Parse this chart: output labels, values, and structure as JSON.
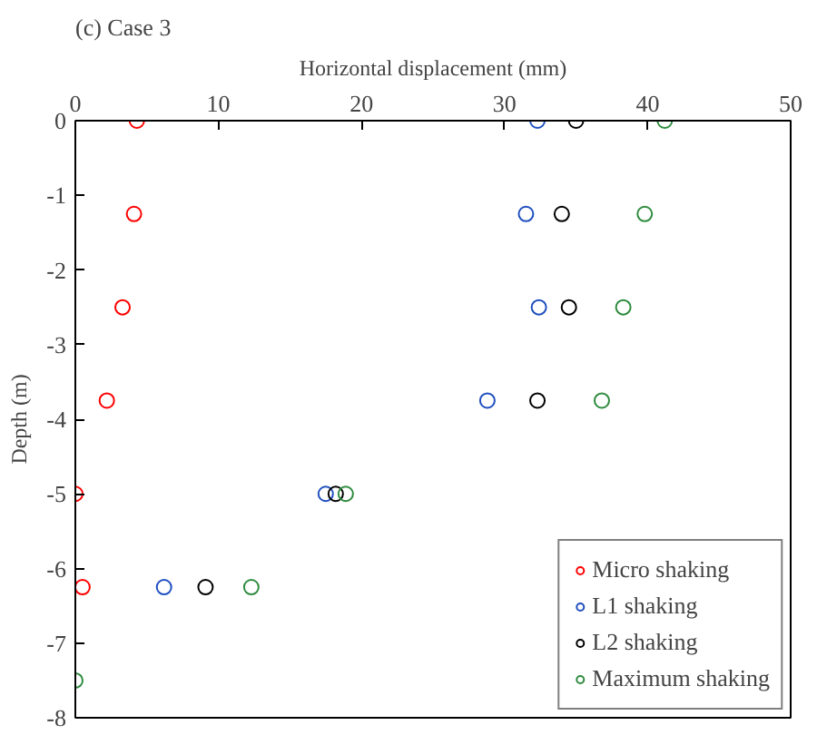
{
  "chart_data": {
    "type": "scatter",
    "title": "(c) Case 3",
    "xlabel": "Horizontal displacement (mm)",
    "ylabel": "Depth (m)",
    "xlim": [
      0,
      50
    ],
    "xticks": [
      0,
      10,
      20,
      30,
      40,
      50
    ],
    "ylim": [
      -8,
      0
    ],
    "yticks": [
      -8,
      -7,
      -6,
      -5,
      -4,
      -3,
      -2,
      -1,
      0
    ],
    "marker": "circle",
    "grid": false,
    "legend": "bottom right",
    "series": [
      {
        "name": "Micro shaking",
        "color": "#ff0000",
        "x": [
          4.3,
          4.1,
          3.3,
          2.2,
          0,
          0.5,
          null
        ],
        "values": [
          0,
          -1.25,
          -2.5,
          -3.75,
          -5,
          -6.25,
          null
        ]
      },
      {
        "name": "L1 shaking",
        "color": "#1f4fbf",
        "x": [
          32.3,
          31.5,
          32.4,
          28.8,
          17.5,
          6.2,
          null
        ],
        "values": [
          0,
          -1.25,
          -2.5,
          -3.75,
          -5,
          -6.25,
          null
        ]
      },
      {
        "name": "L2 shaking",
        "color": "#000000",
        "x": [
          35,
          34,
          34.5,
          32.3,
          18.2,
          9.1,
          null
        ],
        "values": [
          0,
          -1.25,
          -2.5,
          -3.75,
          -5,
          -6.25,
          null
        ]
      },
      {
        "name": "Maximum shaking",
        "color": "#2e8b3e",
        "x": [
          41.2,
          39.8,
          38.3,
          36.8,
          18.9,
          12.3,
          0
        ],
        "values": [
          0,
          -1.25,
          -2.5,
          -3.75,
          -5,
          -6.25,
          -7.5
        ]
      }
    ]
  }
}
